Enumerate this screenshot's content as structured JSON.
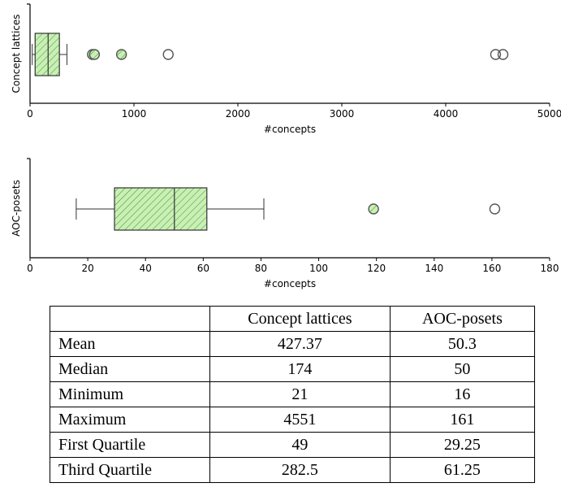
{
  "chart_data": [
    {
      "type": "boxplot",
      "orientation": "horizontal",
      "ylabel": "Concept lattices",
      "xlabel": "#concepts",
      "xlim": [
        0,
        5000
      ],
      "xticks": [
        0,
        1000,
        2000,
        3000,
        4000,
        5000
      ],
      "box": {
        "whisker_low": 21,
        "q1": 49,
        "median": 174,
        "q3": 282.5,
        "whisker_high": 355
      },
      "mild_outliers": [
        600,
        620,
        880
      ],
      "extreme_outliers": [
        1330,
        4480,
        4551
      ],
      "box_color": "#c8f0b4",
      "grid": false
    },
    {
      "type": "boxplot",
      "orientation": "horizontal",
      "ylabel": "AOC-posets",
      "xlabel": "#concepts",
      "xlim": [
        0,
        180
      ],
      "xticks": [
        0,
        20,
        40,
        60,
        80,
        100,
        120,
        140,
        160,
        180
      ],
      "box": {
        "whisker_low": 16,
        "q1": 29.25,
        "median": 50,
        "q3": 61.25,
        "whisker_high": 81
      },
      "mild_outliers": [
        119
      ],
      "extreme_outliers": [
        161
      ],
      "box_color": "#c8f0b4",
      "grid": false
    }
  ],
  "table": {
    "columns": [
      "",
      "Concept lattices",
      "AOC-posets"
    ],
    "rows": [
      [
        "Mean",
        "427.37",
        "50.3"
      ],
      [
        "Median",
        "174",
        "50"
      ],
      [
        "Minimum",
        "21",
        "16"
      ],
      [
        "Maximum",
        "4551",
        "161"
      ],
      [
        "First Quartile",
        "49",
        "29.25"
      ],
      [
        "Third Quartile",
        "282.5",
        "61.25"
      ]
    ]
  }
}
